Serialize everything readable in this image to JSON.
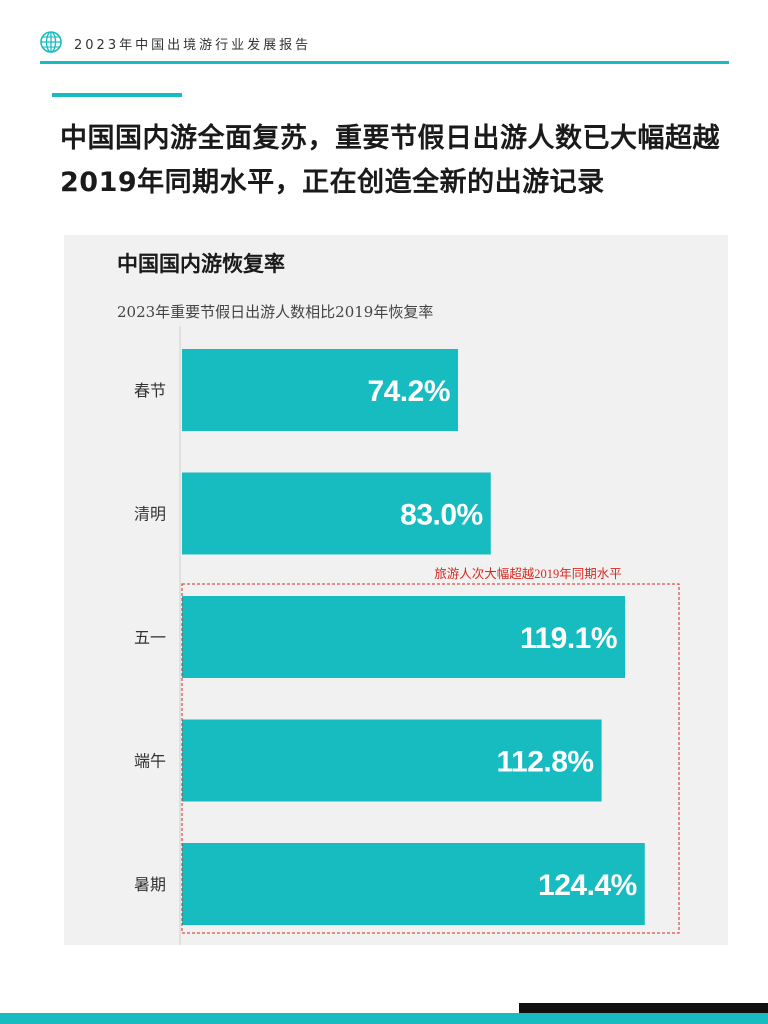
{
  "header": {
    "title": "2023年中国出境游行业发展报告",
    "logo_icon": "globe-icon"
  },
  "headline": "中国国内游全面复苏，重要节假日出游人数已大幅超越2019年同期水平，正在创造全新的出游记录",
  "colors": {
    "accent": "#17bcc1",
    "annotation": "#d8291f",
    "panel_bg": "#f1f1f1"
  },
  "chart_data": {
    "type": "bar",
    "orientation": "horizontal",
    "title": "中国国内游恢复率",
    "subtitle": "2023年重要节假日出游人数相比2019年恢复率",
    "categories": [
      "春节",
      "清明",
      "五一",
      "端午",
      "暑期"
    ],
    "values": [
      74.2,
      83.0,
      119.1,
      112.8,
      124.4
    ],
    "value_labels": [
      "74.2%",
      "83.0%",
      "119.1%",
      "112.8%",
      "124.4%"
    ],
    "unit": "%",
    "xlim": [
      0,
      130
    ],
    "grid": false,
    "annotation": {
      "text": "旅游人次大幅超越2019年同期水平",
      "categories": [
        "五一",
        "端午",
        "暑期"
      ]
    }
  }
}
